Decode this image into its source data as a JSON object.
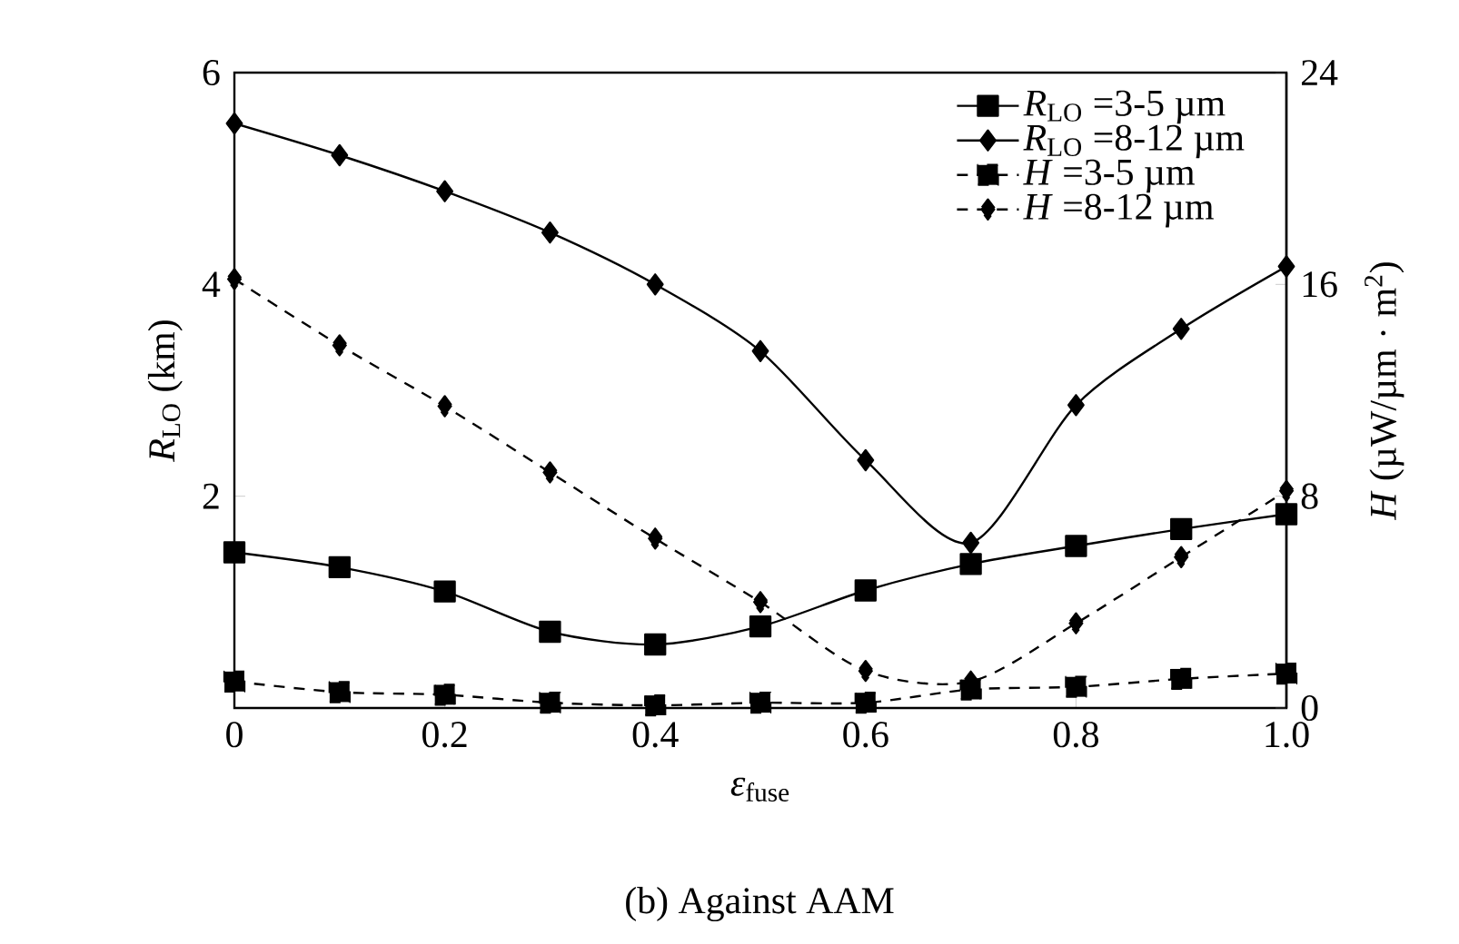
{
  "chart_data": {
    "type": "line",
    "xlabel": "*ε*$_{fuse}$",
    "ylabel": "*R*$_{LO}$ (km)",
    "y2label": "*H* (µW/µm · m$^{2}$)",
    "annotations": [
      "(b) Against AAM"
    ],
    "x": [
      0,
      0.1,
      0.2,
      0.3,
      0.4,
      0.5,
      0.6,
      0.7,
      0.8,
      0.9,
      1.0
    ],
    "series": [
      {
        "name": "*R*$_{LO}$ =3-5 µm",
        "color": "#000000",
        "marker": "square",
        "line_style": "solid",
        "values": [
          1.47,
          1.33,
          1.1,
          0.72,
          0.6,
          0.77,
          1.11,
          1.36,
          1.53,
          1.69,
          1.83
        ]
      },
      {
        "name": "*R*$_{LO}$ =8-12 µm",
        "color": "#000000",
        "marker": "diamond",
        "line_style": "solid",
        "values": [
          5.52,
          5.22,
          4.88,
          4.49,
          4.0,
          3.37,
          2.34,
          1.56,
          2.86,
          3.58,
          4.17
        ]
      },
      {
        "name": "*H* =3-5 µm",
        "color": "#000000",
        "marker": "square",
        "line_style": "dashed",
        "axis": "y2",
        "values": [
          1.0,
          0.6,
          0.5,
          0.2,
          0.1,
          0.2,
          0.2,
          0.7,
          0.8,
          1.1,
          1.3
        ]
      },
      {
        "name": "*H* =8-12 µm",
        "color": "#000000",
        "marker": "diamond",
        "line_style": "dashed",
        "axis": "y2",
        "values": [
          16.2,
          13.7,
          11.4,
          8.9,
          6.4,
          4.0,
          1.4,
          1.0,
          3.2,
          5.7,
          8.2
        ]
      }
    ],
    "xlim": [
      0,
      1.0
    ],
    "xticks": [
      0,
      0.2,
      0.4,
      0.6,
      0.8,
      {
        "value": 1.0,
        "label": "1.0"
      }
    ],
    "ylim": [
      0,
      6
    ],
    "yticks": [
      2,
      4,
      6
    ],
    "y2lim": [
      0,
      24
    ],
    "y2ticks": [
      0,
      8,
      16,
      24
    ],
    "legend": "top right"
  }
}
